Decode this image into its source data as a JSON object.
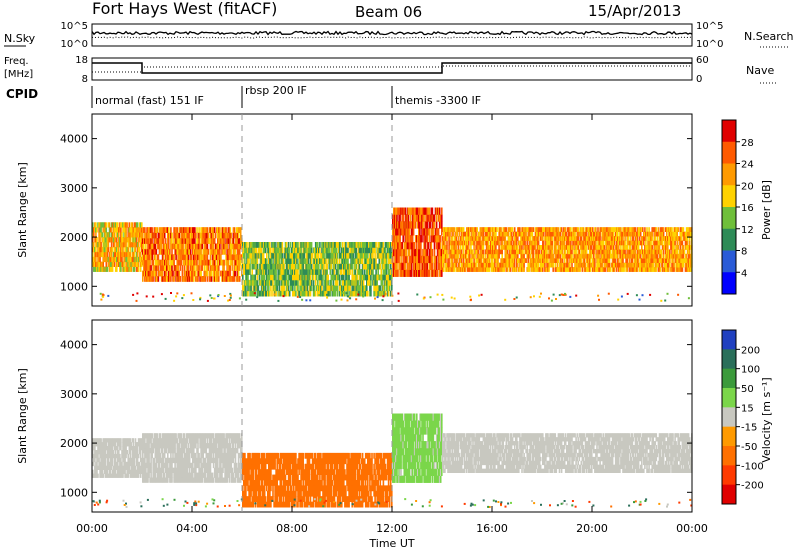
{
  "header": {
    "station": "Fort Hays West (fitACF)",
    "beam": "Beam 06",
    "date": "15/Apr/2013"
  },
  "left_labels": {
    "nsky": "N.Sky",
    "freq_top": "Freq.",
    "freq_unit": "[MHz]",
    "cpid": "CPID"
  },
  "right_labels": {
    "nsearch": "N.Search",
    "nave": "Nave"
  },
  "nsky_axis": {
    "top": "10^5",
    "bottom": "10^0"
  },
  "nsearch_axis": {
    "top": "10^5",
    "bottom": "10^0"
  },
  "freq_axis": {
    "top": "18",
    "bottom": "8"
  },
  "nave_axis": {
    "top": "60",
    "bottom": "0"
  },
  "cpid": [
    {
      "label": "normal (fast) 151 IF",
      "start": "00:00"
    },
    {
      "label": "rbsp 200 IF",
      "start": "06:00"
    },
    {
      "label": "themis -3300 IF",
      "start": "12:00"
    }
  ],
  "x_ticks": [
    "00:00",
    "04:00",
    "08:00",
    "12:00",
    "16:00",
    "20:00",
    "00:00"
  ],
  "xlabel": "Time UT",
  "chart_data": [
    {
      "type": "heatmap",
      "name": "power",
      "ylabel": "Slant Range [km]",
      "ylim": [
        600,
        4500
      ],
      "yticks": [
        "1000",
        "2000",
        "3000",
        "4000"
      ],
      "colorbar_label": "Power [dB]",
      "colorbar_ticks": [
        "28",
        "24",
        "20",
        "16",
        "12",
        "8",
        "4"
      ],
      "colorbar_colors": [
        "#e00000",
        "#ff5a00",
        "#ff9a00",
        "#ffd200",
        "#6fbf3a",
        "#2e8b57",
        "#2a5bd7",
        "#0000ff"
      ],
      "regions": [
        {
          "from": "00:00",
          "to": "02:00",
          "range_km": [
            1300,
            2300
          ],
          "power_db": 18
        },
        {
          "from": "02:00",
          "to": "06:00",
          "range_km": [
            1100,
            2200
          ],
          "power_db": 22
        },
        {
          "from": "06:00",
          "to": "12:00",
          "range_km": [
            800,
            1900
          ],
          "power_db": 12
        },
        {
          "from": "12:00",
          "to": "14:00",
          "range_km": [
            1200,
            2600
          ],
          "power_db": 24
        },
        {
          "from": "14:00",
          "to": "24:00",
          "range_km": [
            1300,
            2200
          ],
          "power_db": 20
        }
      ]
    },
    {
      "type": "heatmap",
      "name": "velocity",
      "ylabel": "Slant Range [km]",
      "ylim": [
        600,
        4500
      ],
      "yticks": [
        "1000",
        "2000",
        "3000",
        "4000"
      ],
      "colorbar_label": "Velocity [m s⁻¹]",
      "colorbar_ticks": [
        "200",
        "100",
        "50",
        "15",
        "-15",
        "-50",
        "-100",
        "-200"
      ],
      "colorbar_colors": [
        "#2040c0",
        "#2a6f5a",
        "#3b9a3b",
        "#7bd64a",
        "#c8c8c0",
        "#ff9a00",
        "#ff7000",
        "#ff3a00",
        "#e00000"
      ],
      "regions": [
        {
          "from": "00:00",
          "to": "02:00",
          "range_km": [
            1300,
            2100
          ],
          "velocity_ms": 0
        },
        {
          "from": "02:00",
          "to": "06:00",
          "range_km": [
            1200,
            2200
          ],
          "velocity_ms": 0
        },
        {
          "from": "06:00",
          "to": "12:00",
          "range_km": [
            700,
            1800
          ],
          "velocity_ms": -60
        },
        {
          "from": "12:00",
          "to": "14:00",
          "range_km": [
            1200,
            2600
          ],
          "velocity_ms": 20
        },
        {
          "from": "14:00",
          "to": "24:00",
          "range_km": [
            1400,
            2200
          ],
          "velocity_ms": 0
        }
      ]
    }
  ]
}
